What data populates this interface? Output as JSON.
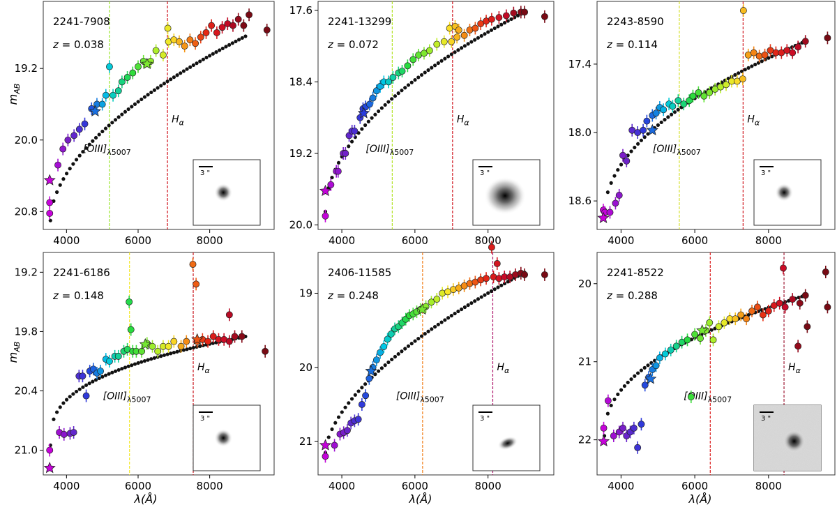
{
  "figure": {
    "xlabel_main": "λ(Å)",
    "ylabel_main": "m",
    "ylabel_sub": "AB",
    "line_labels": {
      "oiii_main": "[OIII]",
      "oiii_sub": "λ5007",
      "ha_main": "H",
      "ha_sub": "α"
    },
    "scale_bar_label": "3 \"",
    "colors": {
      "black_model": "#111111",
      "frame": "#333333"
    }
  },
  "chart_data": [
    {
      "type": "scatter",
      "id": "2241-7908",
      "z_label": "z =",
      "z_value": "0.038",
      "xlim": [
        3350,
        9800
      ],
      "ylim": [
        21.0,
        18.45
      ],
      "xticks": [
        4000,
        6000,
        8000
      ],
      "yticks": [
        19.2,
        20.0,
        20.8
      ],
      "ytick_labels": [
        "19.2",
        "20.0",
        "20.8"
      ],
      "oiii_x": 5200,
      "oiii_color": "#9ae62c",
      "ha_x": 6820,
      "ha_color": "#d0141c",
      "cut_x": 9000,
      "model_y0": 20.9,
      "model_y1": 18.84,
      "model_p": 0.55,
      "phot": [
        [
          3530,
          20.7
        ],
        [
          3530,
          20.82
        ],
        [
          3760,
          20.28
        ],
        [
          3900,
          20.1
        ],
        [
          4040,
          20.0
        ],
        [
          4210,
          19.95
        ],
        [
          4360,
          19.88
        ],
        [
          4510,
          19.82
        ],
        [
          4700,
          19.65
        ],
        [
          4850,
          19.6
        ],
        [
          5000,
          19.6
        ],
        [
          5100,
          19.5
        ],
        [
          5300,
          19.5
        ],
        [
          5450,
          19.45
        ],
        [
          5550,
          19.35
        ],
        [
          5700,
          19.3
        ],
        [
          5850,
          19.25
        ],
        [
          6000,
          19.18
        ],
        [
          6150,
          19.12
        ],
        [
          6350,
          19.12
        ],
        [
          6500,
          19.0
        ],
        [
          6700,
          19.05
        ],
        [
          6850,
          18.9
        ],
        [
          7000,
          18.88
        ],
        [
          7150,
          18.9
        ],
        [
          7300,
          18.95
        ],
        [
          7450,
          18.88
        ],
        [
          7600,
          18.92
        ],
        [
          7750,
          18.85
        ],
        [
          7900,
          18.8
        ],
        [
          8050,
          18.72
        ],
        [
          8200,
          18.8
        ],
        [
          8350,
          18.74
        ],
        [
          8500,
          18.7
        ],
        [
          8650,
          18.72
        ],
        [
          8800,
          18.65
        ],
        [
          8950,
          18.72
        ],
        [
          9100,
          18.6
        ]
      ],
      "outliers": [
        [
          5200,
          19.18
        ],
        [
          6830,
          18.75
        ],
        [
          9600,
          18.77
        ]
      ],
      "stars": [
        [
          3530,
          20.45
        ],
        [
          4800,
          19.68
        ],
        [
          6250,
          19.15
        ]
      ],
      "cutout": "compact"
    },
    {
      "type": "scatter",
      "id": "2241-13299",
      "z_label": "z =",
      "z_value": "0.072",
      "xlim": [
        3350,
        9800
      ],
      "ylim": [
        20.05,
        17.5
      ],
      "xticks": [
        4000,
        6000,
        8000
      ],
      "yticks": [
        17.6,
        18.4,
        19.2,
        20.0
      ],
      "ytick_labels": [
        "17.6",
        "18.4",
        "19.2",
        "20.0"
      ],
      "oiii_x": 5380,
      "oiii_color": "#b5e32a",
      "ha_x": 7030,
      "ha_color": "#d0141c",
      "cut_x": 9000,
      "model_y0": 19.85,
      "model_y1": 17.62,
      "model_p": 0.52,
      "phot": [
        [
          3550,
          19.9
        ],
        [
          3700,
          19.55
        ],
        [
          3850,
          19.4
        ],
        [
          3900,
          19.4
        ],
        [
          4040,
          19.2
        ],
        [
          4100,
          19.2
        ],
        [
          4200,
          19.0
        ],
        [
          4280,
          18.95
        ],
        [
          4350,
          18.95
        ],
        [
          4500,
          18.8
        ],
        [
          4580,
          18.7
        ],
        [
          4650,
          18.68
        ],
        [
          4760,
          18.65
        ],
        [
          4850,
          18.58
        ],
        [
          4950,
          18.5
        ],
        [
          5050,
          18.45
        ],
        [
          5150,
          18.4
        ],
        [
          5280,
          18.4
        ],
        [
          5400,
          18.35
        ],
        [
          5550,
          18.3
        ],
        [
          5650,
          18.28
        ],
        [
          5800,
          18.22
        ],
        [
          5950,
          18.15
        ],
        [
          6100,
          18.1
        ],
        [
          6250,
          18.08
        ],
        [
          6400,
          18.05
        ],
        [
          6600,
          17.98
        ],
        [
          6800,
          17.95
        ],
        [
          7000,
          17.95
        ],
        [
          7150,
          17.9
        ],
        [
          7350,
          17.88
        ],
        [
          7500,
          17.82
        ],
        [
          7650,
          17.8
        ],
        [
          7800,
          17.75
        ],
        [
          7950,
          17.72
        ],
        [
          8100,
          17.7
        ],
        [
          8300,
          17.68
        ],
        [
          8500,
          17.66
        ],
        [
          8700,
          17.63
        ],
        [
          8900,
          17.62
        ],
        [
          9000,
          17.62
        ]
      ],
      "outliers": [
        [
          6950,
          17.8
        ],
        [
          7100,
          17.78
        ],
        [
          7200,
          17.82
        ],
        [
          9550,
          17.67
        ]
      ],
      "stars": [
        [
          3550,
          19.62
        ],
        [
          4600,
          18.75
        ]
      ],
      "cutout": "spiral"
    },
    {
      "type": "scatter",
      "id": "2243-8590",
      "z_label": "z =",
      "z_value": "0.114",
      "xlim": [
        3350,
        9800
      ],
      "ylim": [
        18.85,
        16.85
      ],
      "xticks": [
        4000,
        6000,
        8000
      ],
      "yticks": [
        17.4,
        18.0,
        18.6
      ],
      "ytick_labels": [
        "17.4",
        "18.0",
        "18.6"
      ],
      "oiii_x": 5580,
      "oiii_color": "#d5e22c",
      "ha_x": 7310,
      "ha_color": "#d0141c",
      "cut_x": 9300,
      "model_y0": 18.72,
      "model_y1": 17.2,
      "model_p": 0.5,
      "phot": [
        [
          3520,
          18.68
        ],
        [
          3560,
          18.7
        ],
        [
          3700,
          18.7
        ],
        [
          3850,
          18.62
        ],
        [
          3950,
          18.55
        ],
        [
          4050,
          18.2
        ],
        [
          4150,
          18.25
        ],
        [
          4300,
          17.98
        ],
        [
          4450,
          18.0
        ],
        [
          4600,
          17.98
        ],
        [
          4700,
          17.9
        ],
        [
          4850,
          17.85
        ],
        [
          4950,
          17.83
        ],
        [
          5050,
          17.78
        ],
        [
          5150,
          17.8
        ],
        [
          5300,
          17.75
        ],
        [
          5400,
          17.77
        ],
        [
          5550,
          17.72
        ],
        [
          5700,
          17.75
        ],
        [
          5850,
          17.72
        ],
        [
          5950,
          17.68
        ],
        [
          6100,
          17.65
        ],
        [
          6250,
          17.68
        ],
        [
          6400,
          17.65
        ],
        [
          6550,
          17.62
        ],
        [
          6700,
          17.6
        ],
        [
          6850,
          17.58
        ],
        [
          7000,
          17.55
        ],
        [
          7150,
          17.55
        ],
        [
          7300,
          17.53
        ],
        [
          7450,
          17.32
        ],
        [
          7600,
          17.3
        ],
        [
          7750,
          17.33
        ],
        [
          7900,
          17.32
        ],
        [
          8050,
          17.28
        ],
        [
          8200,
          17.3
        ],
        [
          8350,
          17.3
        ],
        [
          8500,
          17.28
        ],
        [
          8650,
          17.3
        ],
        [
          8800,
          17.25
        ],
        [
          9000,
          17.2
        ]
      ],
      "outliers": [
        [
          7320,
          16.93
        ],
        [
          9600,
          17.17
        ]
      ],
      "stars": [
        [
          4850,
          17.98
        ],
        [
          3520,
          18.75
        ]
      ],
      "cutout": "compact"
    },
    {
      "type": "scatter",
      "id": "2241-6186",
      "z_label": "z =",
      "z_value": "0.148",
      "xlim": [
        3350,
        9800
      ],
      "ylim": [
        21.25,
        19.0
      ],
      "xticks": [
        4000,
        6000,
        8000
      ],
      "yticks": [
        19.2,
        19.8,
        20.4,
        21.0
      ],
      "ytick_labels": [
        "19.2",
        "19.8",
        "20.4",
        "21.0"
      ],
      "oiii_x": 5760,
      "oiii_color": "#f4e92b",
      "ha_x": 7540,
      "ha_color": "#c9161e",
      "cut_x": 9000,
      "model_y0": 20.95,
      "model_y1": 19.85,
      "model_p": 0.35,
      "phot": [
        [
          3530,
          21.0
        ],
        [
          3800,
          20.82
        ],
        [
          3930,
          20.84
        ],
        [
          4100,
          20.83
        ],
        [
          4200,
          20.82
        ],
        [
          4350,
          20.25
        ],
        [
          4450,
          20.25
        ],
        [
          4550,
          20.45
        ],
        [
          4650,
          20.2
        ],
        [
          4750,
          20.18
        ],
        [
          4850,
          20.22
        ],
        [
          4950,
          20.2
        ],
        [
          5100,
          20.08
        ],
        [
          5200,
          20.1
        ],
        [
          5350,
          20.05
        ],
        [
          5450,
          20.05
        ],
        [
          5600,
          20.0
        ],
        [
          5700,
          19.98
        ],
        [
          5850,
          20.0
        ],
        [
          5950,
          20.0
        ],
        [
          6100,
          20.0
        ],
        [
          6250,
          19.92
        ],
        [
          6400,
          19.95
        ],
        [
          6550,
          20.0
        ],
        [
          6700,
          19.95
        ],
        [
          6850,
          19.95
        ],
        [
          7000,
          19.9
        ],
        [
          7200,
          19.95
        ],
        [
          7350,
          19.9
        ],
        [
          7650,
          19.9
        ],
        [
          7800,
          19.88
        ],
        [
          7950,
          19.9
        ],
        [
          8100,
          19.85
        ],
        [
          8250,
          19.88
        ],
        [
          8400,
          19.88
        ],
        [
          8550,
          19.9
        ],
        [
          8700,
          19.85
        ],
        [
          8900,
          19.85
        ]
      ],
      "outliers": [
        [
          5750,
          19.5
        ],
        [
          5800,
          19.78
        ],
        [
          7530,
          19.12
        ],
        [
          7620,
          19.32
        ],
        [
          8550,
          19.63
        ],
        [
          9550,
          20.0
        ]
      ],
      "stars": [
        [
          3530,
          21.18
        ],
        [
          6200,
          19.93
        ],
        [
          7650,
          19.88
        ]
      ],
      "cutout": "compact"
    },
    {
      "type": "scatter",
      "id": "2406-11585",
      "z_label": "z =",
      "z_value": "0.248",
      "xlim": [
        3350,
        9800
      ],
      "ylim": [
        21.45,
        18.45
      ],
      "xticks": [
        4000,
        6000,
        8000
      ],
      "yticks": [
        19,
        20,
        21
      ],
      "ytick_labels": [
        "19",
        "20",
        "21"
      ],
      "oiii_x": 6210,
      "oiii_color": "#f07a12",
      "ha_x": 8130,
      "ha_color": "#b01a6e",
      "cut_x": 9000,
      "model_y0": 21.15,
      "model_y1": 18.72,
      "model_p": 0.6,
      "phot": [
        [
          3550,
          21.2
        ],
        [
          3800,
          21.05
        ],
        [
          3950,
          20.9
        ],
        [
          4050,
          20.88
        ],
        [
          4150,
          20.85
        ],
        [
          4250,
          20.75
        ],
        [
          4350,
          20.72
        ],
        [
          4450,
          20.7
        ],
        [
          4550,
          20.5
        ],
        [
          4650,
          20.38
        ],
        [
          4750,
          20.15
        ],
        [
          4850,
          20.0
        ],
        [
          4950,
          19.9
        ],
        [
          5050,
          19.8
        ],
        [
          5150,
          19.72
        ],
        [
          5250,
          19.62
        ],
        [
          5350,
          19.55
        ],
        [
          5450,
          19.48
        ],
        [
          5550,
          19.45
        ],
        [
          5650,
          19.4
        ],
        [
          5750,
          19.35
        ],
        [
          5850,
          19.3
        ],
        [
          5950,
          19.28
        ],
        [
          6050,
          19.25
        ],
        [
          6150,
          19.22
        ],
        [
          6300,
          19.18
        ],
        [
          6450,
          19.12
        ],
        [
          6600,
          19.08
        ],
        [
          6750,
          19.0
        ],
        [
          6900,
          18.98
        ],
        [
          7050,
          18.95
        ],
        [
          7200,
          18.93
        ],
        [
          7350,
          18.9
        ],
        [
          7500,
          18.87
        ],
        [
          7650,
          18.85
        ],
        [
          7800,
          18.82
        ],
        [
          7950,
          18.8
        ],
        [
          8150,
          18.78
        ],
        [
          8300,
          18.8
        ],
        [
          8450,
          18.78
        ],
        [
          8600,
          18.78
        ],
        [
          8750,
          18.75
        ],
        [
          8900,
          18.73
        ],
        [
          9000,
          18.75
        ]
      ],
      "outliers": [
        [
          8100,
          18.38
        ],
        [
          8250,
          18.6
        ],
        [
          9550,
          18.75
        ]
      ],
      "stars": [
        [
          3550,
          21.05
        ],
        [
          4800,
          20.05
        ],
        [
          6200,
          19.22
        ]
      ],
      "cutout": "elongated"
    },
    {
      "type": "scatter",
      "id": "2241-8522",
      "z_label": "z =",
      "z_value": "0.288",
      "xlim": [
        3350,
        9800
      ],
      "ylim": [
        22.45,
        19.6
      ],
      "xticks": [
        4000,
        6000,
        8000
      ],
      "yticks": [
        20,
        21,
        22
      ],
      "ytick_labels": [
        "20",
        "21",
        "22"
      ],
      "oiii_x": 6420,
      "oiii_color": "#dc1f1f",
      "ha_x": 8420,
      "ha_color": "#a01c37",
      "cut_x": 9000,
      "model_y0": 21.95,
      "model_y1": 20.15,
      "model_p": 0.45,
      "phot": [
        [
          3530,
          21.85
        ],
        [
          3650,
          21.5
        ],
        [
          3800,
          21.95
        ],
        [
          3950,
          21.9
        ],
        [
          4050,
          21.85
        ],
        [
          4150,
          21.95
        ],
        [
          4250,
          21.9
        ],
        [
          4350,
          21.85
        ],
        [
          4450,
          22.1
        ],
        [
          4550,
          21.8
        ],
        [
          4650,
          21.3
        ],
        [
          4750,
          21.2
        ],
        [
          4850,
          21.1
        ],
        [
          4950,
          21.05
        ],
        [
          5050,
          20.95
        ],
        [
          5200,
          20.9
        ],
        [
          5350,
          20.85
        ],
        [
          5500,
          20.8
        ],
        [
          5650,
          20.75
        ],
        [
          5800,
          20.72
        ],
        [
          6000,
          20.65
        ],
        [
          6150,
          20.7
        ],
        [
          6300,
          20.6
        ],
        [
          6500,
          20.72
        ],
        [
          6650,
          20.55
        ],
        [
          6800,
          20.5
        ],
        [
          6950,
          20.45
        ],
        [
          7100,
          20.45
        ],
        [
          7250,
          20.4
        ],
        [
          7400,
          20.45
        ],
        [
          7550,
          20.35
        ],
        [
          7700,
          20.3
        ],
        [
          7850,
          20.4
        ],
        [
          8000,
          20.35
        ],
        [
          8150,
          20.28
        ],
        [
          8300,
          20.25
        ],
        [
          8450,
          20.3
        ],
        [
          8650,
          20.2
        ],
        [
          8850,
          20.25
        ],
        [
          9000,
          20.15
        ]
      ],
      "outliers": [
        [
          5900,
          21.45
        ],
        [
          6400,
          20.5
        ],
        [
          8800,
          20.8
        ],
        [
          8400,
          19.8
        ],
        [
          9550,
          19.85
        ],
        [
          9050,
          20.55
        ],
        [
          9600,
          20.3
        ]
      ],
      "stars": [
        [
          3530,
          22.02
        ],
        [
          4800,
          21.22
        ],
        [
          6200,
          20.6
        ]
      ],
      "cutout": "noisy"
    }
  ]
}
